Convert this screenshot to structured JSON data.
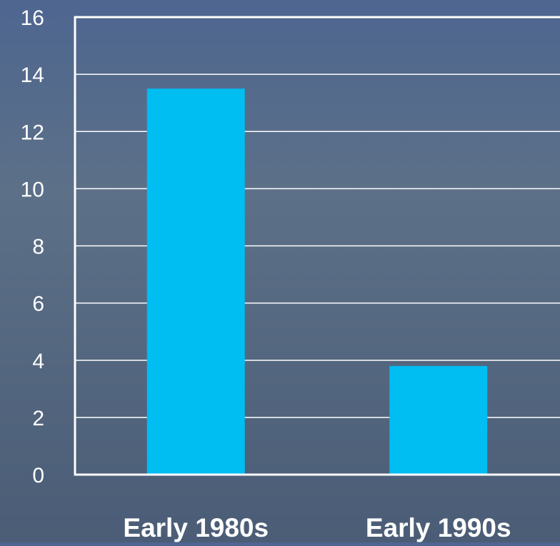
{
  "chart_data": {
    "type": "bar",
    "title": "",
    "xlabel": "",
    "ylabel": "",
    "categories": [
      "Early 1980s",
      "Early 1990s"
    ],
    "series": [
      {
        "values": [
          13.5,
          3.8
        ]
      }
    ],
    "ylim": [
      0,
      16
    ],
    "yticks": [
      "0",
      "2",
      "4",
      "6",
      "8",
      "10",
      "12",
      "14",
      "16"
    ],
    "grid": true,
    "legend": "none",
    "colors": {
      "bar": "#00bdf2",
      "grid": "#ffffff",
      "axis": "#ffffff",
      "tick_text": "#ffffff",
      "category_text": "#ffffff"
    }
  }
}
